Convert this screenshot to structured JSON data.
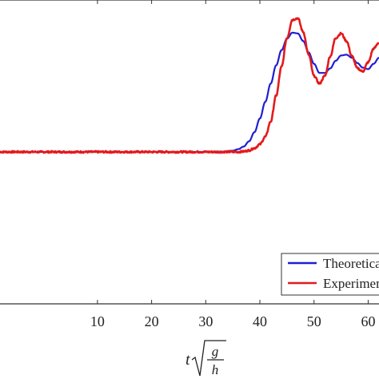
{
  "chart_data": {
    "type": "line",
    "xlim": [
      -8,
      62
    ],
    "ylim": [
      -1,
      1
    ],
    "x_ticks": [
      "10",
      "20",
      "30",
      "40",
      "50",
      "60"
    ],
    "x_tick_values": [
      10,
      20,
      30,
      40,
      50,
      60
    ],
    "xlabel": {
      "base": "t",
      "radicand_numerator": "g",
      "radicand_denominator": "h"
    },
    "grid": false,
    "legend_position": "bottom-right",
    "series": [
      {
        "name": "Theoretical",
        "color": "#1f1fd1",
        "x": [
          -8,
          30,
          33,
          35,
          36,
          37,
          38,
          39,
          40,
          41,
          42,
          43,
          44,
          45,
          46,
          47,
          48,
          49,
          50,
          51,
          52,
          53,
          54,
          55,
          56,
          57,
          58,
          59,
          60,
          61,
          62
        ],
        "y": [
          0,
          0,
          0.002,
          0.008,
          0.018,
          0.035,
          0.07,
          0.13,
          0.22,
          0.33,
          0.45,
          0.57,
          0.67,
          0.745,
          0.785,
          0.78,
          0.73,
          0.655,
          0.58,
          0.52,
          0.52,
          0.55,
          0.6,
          0.635,
          0.64,
          0.62,
          0.585,
          0.555,
          0.545,
          0.58,
          0.62
        ]
      },
      {
        "name": "Experimental",
        "color": "#e31a1c",
        "x": [
          -8,
          36,
          37,
          38,
          39,
          40,
          41,
          42,
          43,
          44,
          45,
          46,
          47,
          48,
          49,
          50,
          51,
          52,
          53,
          54,
          55,
          56,
          57,
          58,
          59,
          60,
          61,
          62
        ],
        "y": [
          0,
          0,
          0.003,
          0.01,
          0.025,
          0.05,
          0.1,
          0.2,
          0.37,
          0.56,
          0.75,
          0.87,
          0.88,
          0.79,
          0.64,
          0.5,
          0.45,
          0.5,
          0.63,
          0.75,
          0.78,
          0.73,
          0.63,
          0.55,
          0.53,
          0.59,
          0.68,
          0.72
        ]
      }
    ]
  }
}
